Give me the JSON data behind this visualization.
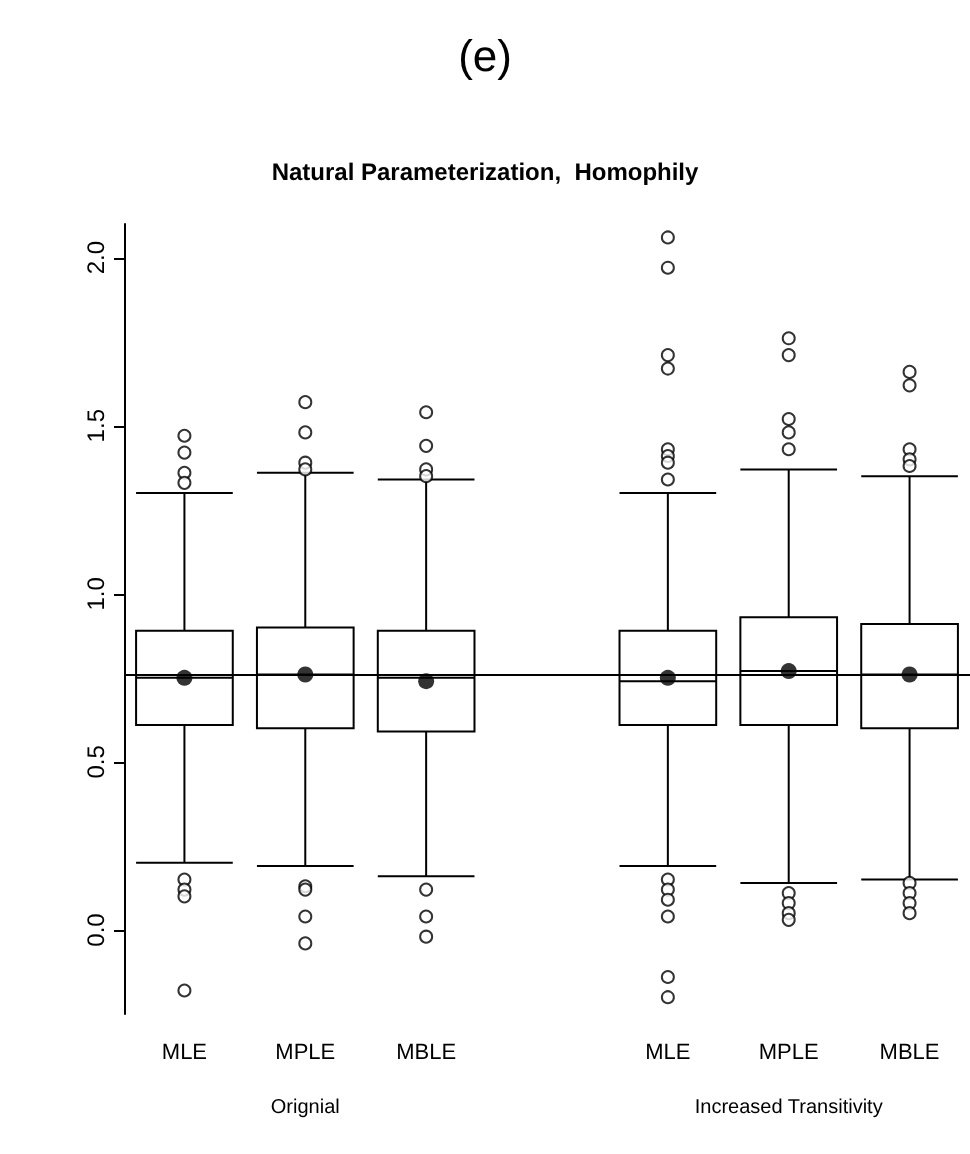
{
  "chart_data": {
    "type": "box",
    "title": "(e)",
    "subtitle": "Natural Parameterization,  Homophily",
    "categories": [
      "MLE",
      "MPLE",
      "MBLE",
      null,
      "MLE",
      "MPLE",
      "MBLE"
    ],
    "boxes": [
      {
        "low": 0.2,
        "q1": 0.61,
        "median": 0.75,
        "q3": 0.89,
        "high": 1.3,
        "mean": 0.75,
        "outliers": [
          1.47,
          1.42,
          1.36,
          1.33,
          0.15,
          0.12,
          0.1,
          -0.18
        ]
      },
      {
        "low": 0.19,
        "q1": 0.6,
        "median": 0.76,
        "q3": 0.9,
        "high": 1.36,
        "mean": 0.76,
        "outliers": [
          1.57,
          1.48,
          1.39,
          1.37,
          0.13,
          0.12,
          0.04,
          -0.04
        ]
      },
      {
        "low": 0.16,
        "q1": 0.59,
        "median": 0.75,
        "q3": 0.89,
        "high": 1.34,
        "mean": 0.74,
        "outliers": [
          1.54,
          1.44,
          1.37,
          1.35,
          0.12,
          0.04,
          -0.02
        ]
      },
      null,
      {
        "low": 0.19,
        "q1": 0.61,
        "median": 0.74,
        "q3": 0.89,
        "high": 1.3,
        "mean": 0.75,
        "outliers": [
          2.06,
          1.97,
          1.71,
          1.67,
          1.43,
          1.41,
          1.39,
          1.34,
          0.15,
          0.12,
          0.09,
          0.04,
          -0.14,
          -0.2
        ]
      },
      {
        "low": 0.14,
        "q1": 0.61,
        "median": 0.77,
        "q3": 0.93,
        "high": 1.37,
        "mean": 0.77,
        "outliers": [
          1.76,
          1.71,
          1.52,
          1.48,
          1.43,
          0.11,
          0.08,
          0.05,
          0.03
        ]
      },
      {
        "low": 0.15,
        "q1": 0.6,
        "median": 0.76,
        "q3": 0.91,
        "high": 1.35,
        "mean": 0.76,
        "outliers": [
          1.66,
          1.62,
          1.43,
          1.4,
          1.38,
          0.14,
          0.11,
          0.08,
          0.05
        ]
      }
    ],
    "ylim": [
      -0.25,
      2.1
    ],
    "yticks": [
      {
        "value": 0,
        "label": "0.0"
      },
      0.5,
      {
        "value": 1,
        "label": "1.0"
      },
      1.5,
      {
        "value": 2,
        "label": "2.0"
      }
    ],
    "ref_lines": [
      {
        "axis": "y",
        "value": 0.76
      }
    ],
    "annotations": [
      "Orignial",
      "Increased Transitivity"
    ]
  }
}
